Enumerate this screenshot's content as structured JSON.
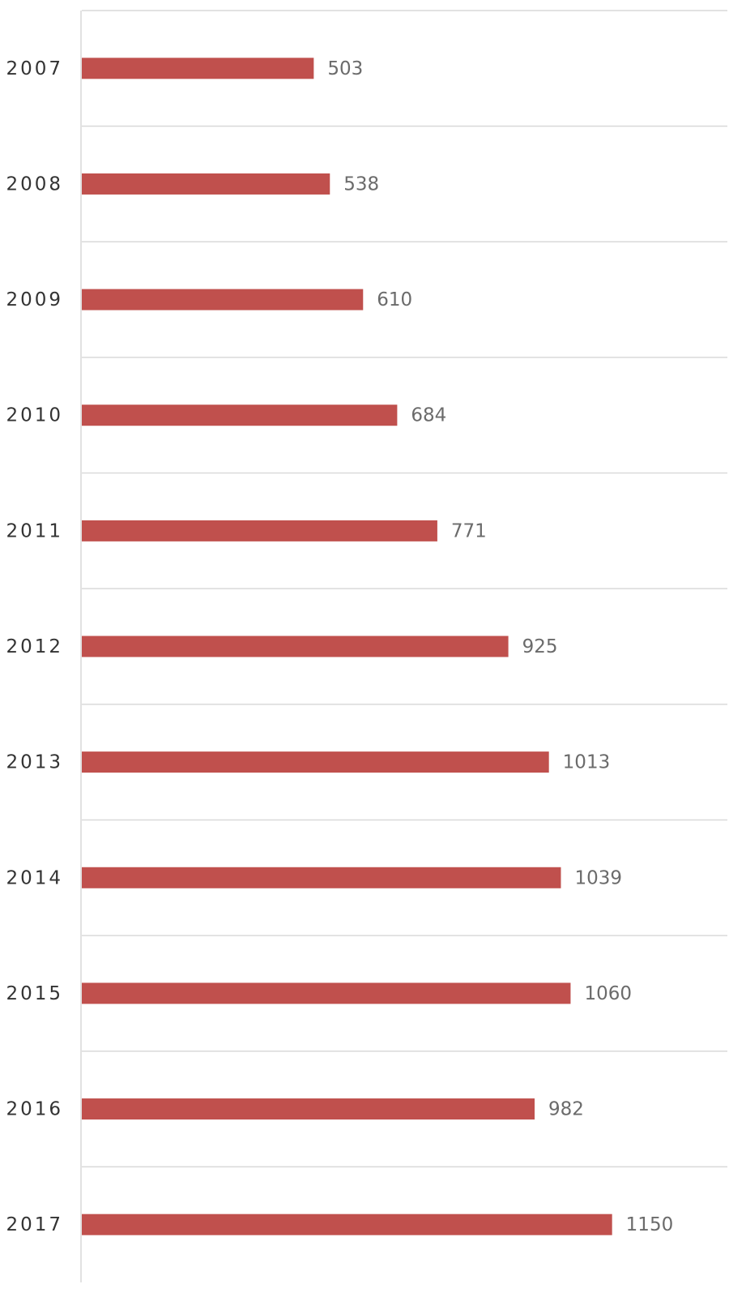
{
  "chart_data": {
    "type": "bar",
    "orientation": "horizontal",
    "categories": [
      "2007",
      "2008",
      "2009",
      "2010",
      "2011",
      "2012",
      "2013",
      "2014",
      "2015",
      "2016",
      "2017"
    ],
    "values": [
      503,
      538,
      610,
      684,
      771,
      925,
      1013,
      1039,
      1060,
      982,
      1150
    ],
    "color": "#c0504d",
    "xlim": [
      0,
      1400
    ],
    "grid": true
  }
}
